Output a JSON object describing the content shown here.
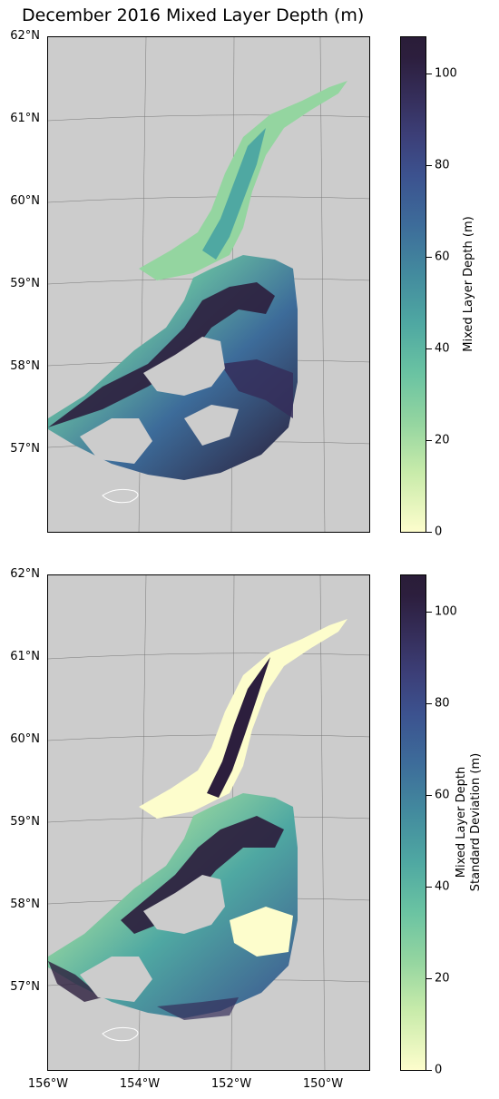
{
  "title": "December 2016 Mixed Layer Depth (m)",
  "lat_labels": [
    "62°N",
    "61°N",
    "60°N",
    "59°N",
    "58°N",
    "57°N"
  ],
  "lon_labels": [
    "156°W",
    "154°W",
    "152°W",
    "150°W"
  ],
  "colors": {
    "land": "#cccccc",
    "colormap": "deep (light yellow to dark purple)",
    "low": "#fdfdcc",
    "high": "#2a1d38"
  },
  "panels": [
    {
      "colorbar_title_line1": "Mixed Layer Depth (m)",
      "colorbar_title_line2": "",
      "colorbar_ticks": [
        "0",
        "20",
        "40",
        "60",
        "80",
        "100"
      ],
      "colorbar_max": 108
    },
    {
      "colorbar_title_line1": "Mixed Layer Depth",
      "colorbar_title_line2": "Standard Deviation (m)",
      "colorbar_ticks": [
        "0",
        "20",
        "40",
        "60",
        "80",
        "100"
      ],
      "colorbar_max": 107
    }
  ]
}
